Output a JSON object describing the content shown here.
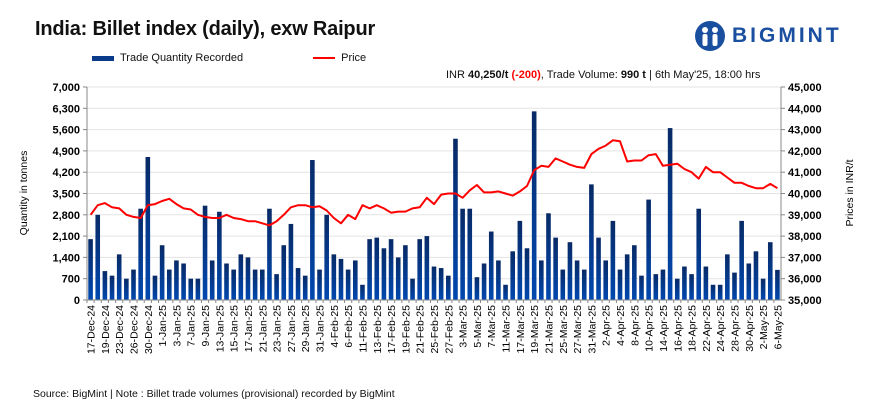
{
  "header": {
    "title": "India: Billet index (daily), exw Raipur",
    "logo_text": "BIGMINT"
  },
  "info": {
    "prefix": "INR ",
    "price": "40,250/t",
    "change": "(-200)",
    "volume_label": ", Trade Volume: ",
    "volume": "990 t",
    "timestamp": " | 6th May'25, 18:00 hrs"
  },
  "footer": {
    "source": "Source: BigMint | Note : Billet trade volumes (provisional) recorded by BigMint"
  },
  "colors": {
    "bar": "#0a3a8a",
    "line": "#ff0000"
  },
  "chart_data": {
    "type": "bar+line",
    "title": "India: Billet index (daily), exw Raipur",
    "legend": [
      "Trade Quantity Recorded",
      "Price"
    ],
    "legend_position": "top-left",
    "ylabel": "Quantity in tonnes",
    "y2label": "Prices in INR/t",
    "ylim": [
      0,
      7000
    ],
    "y2lim": [
      35000,
      45000
    ],
    "yticks": [
      "0",
      "700",
      "1,400",
      "2,100",
      "2,800",
      "3,500",
      "4,200",
      "4,900",
      "5,600",
      "6,300",
      "7,000"
    ],
    "y2ticks": [
      "35,000",
      "36,000",
      "37,000",
      "38,000",
      "39,000",
      "40,000",
      "41,000",
      "42,000",
      "43,000",
      "44,000",
      "45,000"
    ],
    "grid": true,
    "xlabels": [
      "17-Dec-24",
      "19-Dec-24",
      "23-Dec-24",
      "26-Dec-24",
      "30-Dec-24",
      "1-Jan-25",
      "3-Jan-25",
      "7-Jan-25",
      "9-Jan-25",
      "13-Jan-25",
      "15-Jan-25",
      "17-Jan-25",
      "21-Jan-25",
      "23-Jan-25",
      "27-Jan-25",
      "29-Jan-25",
      "31-Jan-25",
      "4-Feb-25",
      "6-Feb-25",
      "11-Feb-25",
      "13-Feb-25",
      "17-Feb-25",
      "19-Feb-25",
      "21-Feb-25",
      "25-Feb-25",
      "27-Feb-25",
      "3-Mar-25",
      "5-Mar-25",
      "7-Mar-25",
      "11-Mar-25",
      "17-Mar-25",
      "19-Mar-25",
      "21-Mar-25",
      "25-Mar-25",
      "27-Mar-25",
      "31-Mar-25",
      "2-Apr-25",
      "4-Apr-25",
      "8-Apr-25",
      "10-Apr-25",
      "14-Apr-25",
      "16-Apr-25",
      "18-Apr-25",
      "22-Apr-25",
      "24-Apr-25",
      "28-Apr-25",
      "30-Apr-25",
      "2-May-25",
      "6-May-25"
    ],
    "series": [
      {
        "name": "Trade Quantity Recorded",
        "type": "bar",
        "axis": "left",
        "values": [
          2000,
          2800,
          950,
          800,
          1500,
          700,
          1000,
          3000,
          4700,
          800,
          1800,
          1000,
          1300,
          1200,
          700,
          700,
          3100,
          1300,
          2900,
          1200,
          1000,
          1500,
          1400,
          1000,
          1000,
          3000,
          850,
          1800,
          2500,
          1050,
          800,
          4600,
          1000,
          2800,
          1500,
          1350,
          1000,
          1300,
          500,
          2000,
          2050,
          1700,
          2000,
          1400,
          1800,
          700,
          2000,
          2100,
          1100,
          1050,
          800,
          5300,
          3000,
          3000,
          750,
          1200,
          2250,
          1300,
          500,
          1600,
          2600,
          1700,
          6200,
          1300,
          2850,
          2050,
          1000,
          1900,
          1300,
          1000,
          3800,
          2050,
          1300,
          2600,
          1000,
          1500,
          1800,
          800,
          3300,
          850,
          1000,
          5650,
          700,
          1100,
          850,
          3000,
          1100,
          500,
          500,
          1500,
          900,
          2600,
          1200,
          1600,
          700,
          1900,
          990
        ]
      },
      {
        "name": "Price",
        "type": "line",
        "axis": "right",
        "values": [
          39000,
          39450,
          39550,
          39350,
          39300,
          39000,
          38900,
          38850,
          39450,
          39500,
          39650,
          39750,
          39500,
          39300,
          39250,
          39000,
          38900,
          38850,
          38850,
          39000,
          38850,
          38800,
          38700,
          38700,
          38600,
          38500,
          38700,
          39000,
          39350,
          39450,
          39450,
          39350,
          39400,
          39200,
          38850,
          38600,
          39000,
          38800,
          39450,
          39300,
          39450,
          39300,
          39100,
          39150,
          39150,
          39300,
          39350,
          39800,
          39500,
          39950,
          40000,
          40000,
          39800,
          40150,
          40400,
          40050,
          40050,
          40100,
          40000,
          39900,
          40100,
          40350,
          41100,
          41300,
          41250,
          41650,
          41500,
          41350,
          41250,
          41200,
          41850,
          42100,
          42250,
          42500,
          42450,
          41500,
          41550,
          41550,
          41800,
          41850,
          41300,
          41350,
          41400,
          41150,
          41000,
          40700,
          41250,
          41000,
          41000,
          40750,
          40500,
          40500,
          40350,
          40250,
          40250,
          40450,
          40250
        ]
      }
    ]
  }
}
